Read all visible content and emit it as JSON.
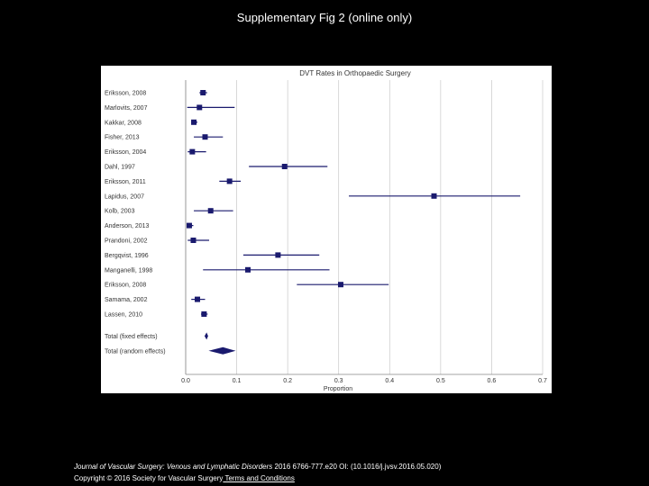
{
  "slide": {
    "title": "Supplementary Fig 2 (online only)"
  },
  "footer": {
    "citation_journal": "Journal of Vascular Surgery: Venous and Lymphatic Disorders",
    "citation_rest": " 2016 6766-777.e20 OI: (10.1016/j.jvsv.2016.05.020)",
    "copyright": "Copyright © 2016 Society for Vascular Surgery",
    "link_label": " Terms and Conditions"
  },
  "colors": {
    "background": "#000000",
    "plot_background": "#ffffff",
    "marker": "#1a1a6e",
    "grid": "#c8c8c8"
  },
  "chart_data": {
    "type": "forest",
    "title": "DVT Rates in Orthopaedic Surgery",
    "xlabel": "Proportion",
    "xlim": [
      0.0,
      0.7
    ],
    "xticks": [
      "0.0",
      "0.1",
      "0.2",
      "0.3",
      "0.4",
      "0.5",
      "0.6",
      "0.7"
    ],
    "grid": true,
    "studies": [
      {
        "label": "Eriksson, 2008",
        "estimate": 0.034,
        "lower": 0.027,
        "upper": 0.042
      },
      {
        "label": "Marlovits, 2007",
        "estimate": 0.027,
        "lower": 0.003,
        "upper": 0.096
      },
      {
        "label": "Kakkar, 2008",
        "estimate": 0.016,
        "lower": 0.011,
        "upper": 0.023
      },
      {
        "label": "Fisher, 2013",
        "estimate": 0.038,
        "lower": 0.016,
        "upper": 0.073
      },
      {
        "label": "Eriksson, 2004",
        "estimate": 0.013,
        "lower": 0.004,
        "upper": 0.04
      },
      {
        "label": "Dahl, 1997",
        "estimate": 0.194,
        "lower": 0.124,
        "upper": 0.278
      },
      {
        "label": "Eriksson, 2011",
        "estimate": 0.086,
        "lower": 0.066,
        "upper": 0.108
      },
      {
        "label": "Lapidus, 2007",
        "estimate": 0.487,
        "lower": 0.32,
        "upper": 0.656
      },
      {
        "label": "Kolb, 2003",
        "estimate": 0.049,
        "lower": 0.016,
        "upper": 0.093
      },
      {
        "label": "Anderson, 2013",
        "estimate": 0.007,
        "lower": 0.002,
        "upper": 0.015
      },
      {
        "label": "Prandoni, 2002",
        "estimate": 0.015,
        "lower": 0.004,
        "upper": 0.046
      },
      {
        "label": "Bergqvist, 1996",
        "estimate": 0.181,
        "lower": 0.113,
        "upper": 0.262
      },
      {
        "label": "Manganelli, 1998",
        "estimate": 0.122,
        "lower": 0.034,
        "upper": 0.282
      },
      {
        "label": "Eriksson, 2008",
        "estimate": 0.304,
        "lower": 0.218,
        "upper": 0.398
      },
      {
        "label": "Samama, 2002",
        "estimate": 0.023,
        "lower": 0.011,
        "upper": 0.038
      },
      {
        "label": "Lassen, 2010",
        "estimate": 0.036,
        "lower": 0.03,
        "upper": 0.043
      }
    ],
    "pooled": [
      {
        "label": "Total (fixed effects)",
        "estimate": 0.041,
        "lower": 0.037,
        "upper": 0.044
      },
      {
        "label": "Total (random effects)",
        "estimate": 0.073,
        "lower": 0.045,
        "upper": 0.098
      }
    ]
  }
}
